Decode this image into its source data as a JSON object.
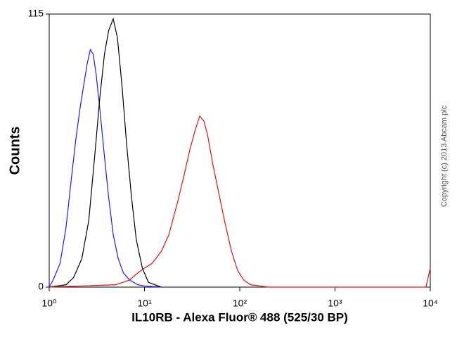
{
  "chart_data": {
    "type": "line",
    "xlabel": "IL10RB - Alexa Fluor® 488 (525/30 BP)",
    "ylabel": "Counts",
    "annotation": "Copyright (c) 2013 Abcam plc",
    "log_x": true,
    "xlim": [
      1,
      10000
    ],
    "xticks": [
      {
        "value": 1,
        "label": "10⁰"
      },
      {
        "value": 10,
        "label": "10¹"
      },
      {
        "value": 100,
        "label": "10²"
      },
      {
        "value": 1000,
        "label": "10³"
      },
      {
        "value": 10000,
        "label": "10⁴"
      }
    ],
    "ylim": [
      0,
      115
    ],
    "yticks": [
      0,
      115
    ],
    "series": [
      {
        "name": "Blue",
        "color": "#1a1aff",
        "x": [
          1,
          1.1,
          1.3,
          1.5,
          1.7,
          1.9,
          2.1,
          2.3,
          2.5,
          2.7,
          2.9,
          3.1,
          3.4,
          3.8,
          4.2,
          4.7,
          5.3,
          6,
          7,
          8.5,
          10,
          15
        ],
        "values": [
          0,
          3,
          10,
          25,
          45,
          62,
          75,
          85,
          94,
          100,
          98,
          90,
          75,
          55,
          38,
          22,
          12,
          6,
          3,
          1,
          0.5,
          0
        ]
      },
      {
        "name": "Black",
        "color": "#000000",
        "x": [
          1,
          1.5,
          1.8,
          2.2,
          2.6,
          3,
          3.4,
          3.8,
          4.2,
          4.7,
          5.2,
          5.8,
          6.5,
          7.3,
          8.2,
          9.5,
          11,
          15
        ],
        "values": [
          0,
          1,
          4,
          12,
          28,
          55,
          80,
          98,
          108,
          113,
          105,
          85,
          60,
          38,
          20,
          8,
          2,
          0
        ]
      },
      {
        "name": "Red",
        "color": "#e01010",
        "x": [
          1,
          5,
          7,
          8.5,
          10,
          12,
          15,
          18,
          22,
          26,
          30,
          34,
          38,
          42,
          46,
          52,
          60,
          70,
          82,
          95,
          110,
          130,
          200,
          1000,
          9000,
          10000
        ],
        "values": [
          0,
          1,
          3,
          6,
          8,
          10,
          15,
          22,
          35,
          47,
          58,
          66,
          72,
          70,
          64,
          52,
          40,
          27,
          15,
          7,
          3,
          1,
          0,
          0,
          0,
          8
        ]
      }
    ]
  }
}
